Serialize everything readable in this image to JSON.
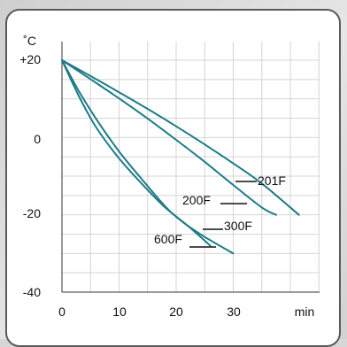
{
  "chart_data": {
    "type": "line",
    "ylabel": "˚C",
    "xlabel": "min",
    "xlim": [
      0,
      42
    ],
    "ylim": [
      -40,
      20
    ],
    "x_ticks": [
      "0",
      "10",
      "20",
      "30"
    ],
    "y_ticks": [
      "+20",
      "0",
      "-20",
      "-40"
    ],
    "grid": true,
    "series_color": "#1e7b86",
    "series": [
      {
        "name": "201F",
        "x": [
          0,
          5,
          10,
          15,
          20,
          25,
          30,
          35,
          41.5
        ],
        "y": [
          20,
          15.9,
          11.7,
          7.4,
          2.9,
          -1.8,
          -6.7,
          -11.9,
          -20
        ]
      },
      {
        "name": "200F",
        "x": [
          0,
          5,
          10,
          15,
          20,
          25,
          30,
          35,
          37.5
        ],
        "y": [
          20,
          15.1,
          10.1,
          4.9,
          -0.6,
          -6.3,
          -12.3,
          -18.1,
          -20
        ]
      },
      {
        "name": "300F",
        "x": [
          0,
          3,
          6,
          10,
          14,
          18,
          22,
          26
        ],
        "y": [
          20,
          10.6,
          2.6,
          -5.4,
          -12.0,
          -18.0,
          -22.8,
          -28.0
        ]
      },
      {
        "name": "600F",
        "x": [
          0,
          3,
          6,
          10,
          14,
          19,
          24,
          30
        ],
        "y": [
          20,
          11.9,
          4.8,
          -3.6,
          -10.8,
          -19.2,
          -24.8,
          -30
        ]
      }
    ],
    "labels": {
      "s201": "201F",
      "s200": "200F",
      "s300": "300F",
      "s600": "600F"
    }
  }
}
